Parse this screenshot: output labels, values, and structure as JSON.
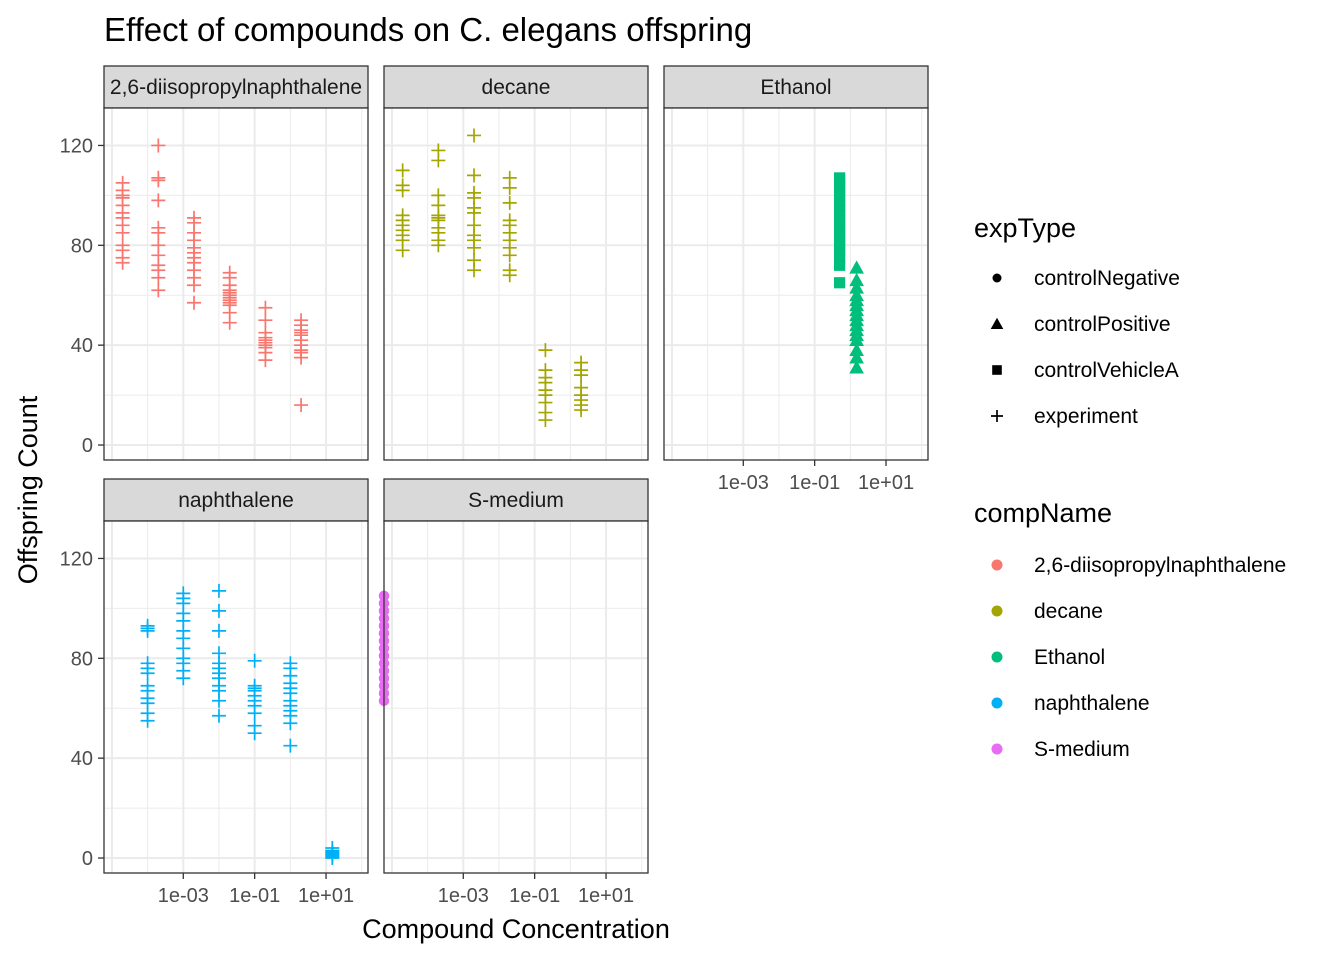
{
  "chart_data": {
    "type": "scatter",
    "title": "Effect of compounds on C. elegans offspring",
    "xlabel": "Compound Concentration",
    "ylabel": "Offspring Count",
    "x_scale": "log10",
    "xlim": [
      6e-06,
      150
    ],
    "ylim": [
      -6,
      135
    ],
    "x_ticks": [
      0.001,
      0.1,
      10
    ],
    "x_tick_labels": [
      "1e-03",
      "1e-01",
      "1e+01"
    ],
    "y_ticks": [
      0,
      40,
      80,
      120
    ],
    "y_tick_labels": [
      "0",
      "40",
      "80",
      "120"
    ],
    "grid": true,
    "legend_position": "right",
    "color_legend": {
      "title": "compName",
      "entries": [
        {
          "label": "2,6-diisopropylnaphthalene",
          "color": "#F8766D"
        },
        {
          "label": "decane",
          "color": "#A3A500"
        },
        {
          "label": "Ethanol",
          "color": "#00BF7D"
        },
        {
          "label": "naphthalene",
          "color": "#00B0F6"
        },
        {
          "label": "S-medium",
          "color": "#E76BF3"
        }
      ]
    },
    "shape_legend": {
      "title": "expType",
      "entries": [
        {
          "label": "controlNegative",
          "shape": "circle"
        },
        {
          "label": "controlPositive",
          "shape": "triangle"
        },
        {
          "label": "controlVehicleA",
          "shape": "square"
        },
        {
          "label": "experiment",
          "shape": "plus"
        }
      ]
    },
    "panels": [
      {
        "name": "2,6-diisopropylnaphthalene",
        "color": "#F8766D",
        "series": [
          {
            "expType": "experiment",
            "x": 2e-05,
            "y": [
              75,
              78,
              80,
              88,
              91,
              93,
              96,
              99,
              100,
              102,
              105,
              73,
              85
            ]
          },
          {
            "expType": "experiment",
            "x": 0.0002,
            "y": [
              62,
              67,
              70,
              72,
              76,
              80,
              85,
              87,
              98,
              106,
              107,
              120
            ]
          },
          {
            "expType": "experiment",
            "x": 0.002,
            "y": [
              57,
              64,
              67,
              70,
              73,
              75,
              77,
              79,
              82,
              85,
              89,
              91
            ]
          },
          {
            "expType": "experiment",
            "x": 0.02,
            "y": [
              49,
              53,
              56,
              57,
              58,
              59,
              60,
              61,
              62,
              64,
              67,
              69
            ]
          },
          {
            "expType": "experiment",
            "x": 0.2,
            "y": [
              34,
              37,
              39,
              40,
              41,
              42,
              43,
              45,
              50,
              55
            ]
          },
          {
            "expType": "experiment",
            "x": 2,
            "y": [
              16,
              35,
              37,
              38,
              40,
              42,
              44,
              45,
              46,
              48,
              50
            ]
          }
        ]
      },
      {
        "name": "decane",
        "color": "#A3A500",
        "series": [
          {
            "expType": "experiment",
            "x": 2e-05,
            "y": [
              78,
              82,
              84,
              86,
              88,
              90,
              92,
              102,
              104,
              110
            ]
          },
          {
            "expType": "experiment",
            "x": 0.0002,
            "y": [
              80,
              82,
              85,
              87,
              90,
              91,
              92,
              96,
              100,
              114,
              118
            ]
          },
          {
            "expType": "experiment",
            "x": 0.002,
            "y": [
              70,
              74,
              79,
              82,
              84,
              88,
              93,
              95,
              99,
              101,
              108,
              124
            ]
          },
          {
            "expType": "experiment",
            "x": 0.02,
            "y": [
              68,
              70,
              76,
              79,
              82,
              85,
              88,
              90,
              97,
              103,
              107
            ]
          },
          {
            "expType": "experiment",
            "x": 0.2,
            "y": [
              10,
              13,
              17,
              20,
              22,
              25,
              27,
              30,
              38
            ]
          },
          {
            "expType": "experiment",
            "x": 2,
            "y": [
              14,
              16,
              18,
              20,
              23,
              28,
              30,
              33
            ]
          }
        ]
      },
      {
        "name": "Ethanol",
        "color": "#00BF7D",
        "series": [
          {
            "expType": "controlVehicleA",
            "x": 0.5,
            "y": [
              65,
              72,
              75,
              78,
              80,
              82,
              84,
              86,
              88,
              90,
              92,
              94,
              96,
              98,
              100,
              102,
              104,
              106,
              107
            ]
          },
          {
            "expType": "controlPositive",
            "x": 1.5,
            "y": [
              31,
              35,
              38,
              42,
              44,
              46,
              48,
              50,
              52,
              54,
              56,
              58,
              60,
              63,
              66,
              71
            ]
          }
        ]
      },
      {
        "name": "naphthalene",
        "color": "#00B0F6",
        "series": [
          {
            "expType": "experiment",
            "x": 0.0001,
            "y": [
              55,
              58,
              62,
              64,
              67,
              69,
              74,
              76,
              78,
              91,
              92,
              93
            ]
          },
          {
            "expType": "experiment",
            "x": 0.001,
            "y": [
              72,
              75,
              78,
              80,
              84,
              88,
              91,
              95,
              98,
              102,
              104,
              106
            ]
          },
          {
            "expType": "experiment",
            "x": 0.01,
            "y": [
              57,
              63,
              67,
              69,
              72,
              74,
              76,
              78,
              82,
              91,
              99,
              107
            ]
          },
          {
            "expType": "experiment",
            "x": 0.1,
            "y": [
              50,
              53,
              58,
              61,
              63,
              65,
              67,
              68,
              69,
              79
            ]
          },
          {
            "expType": "experiment",
            "x": 1,
            "y": [
              45,
              54,
              57,
              59,
              61,
              63,
              66,
              68,
              70,
              73,
              76,
              78
            ]
          },
          {
            "expType": "experiment",
            "x": 15,
            "y": [
              0,
              0.5,
              1,
              1.5,
              2,
              2.5,
              3,
              4
            ]
          }
        ]
      },
      {
        "name": "S-medium",
        "color": "#E76BF3",
        "series": [
          {
            "expType": "controlNegative",
            "x": 6e-06,
            "y": [
              63,
              66,
              69,
              72,
              75,
              78,
              81,
              84,
              87,
              90,
              93,
              96,
              99,
              102,
              105
            ]
          }
        ]
      }
    ]
  }
}
